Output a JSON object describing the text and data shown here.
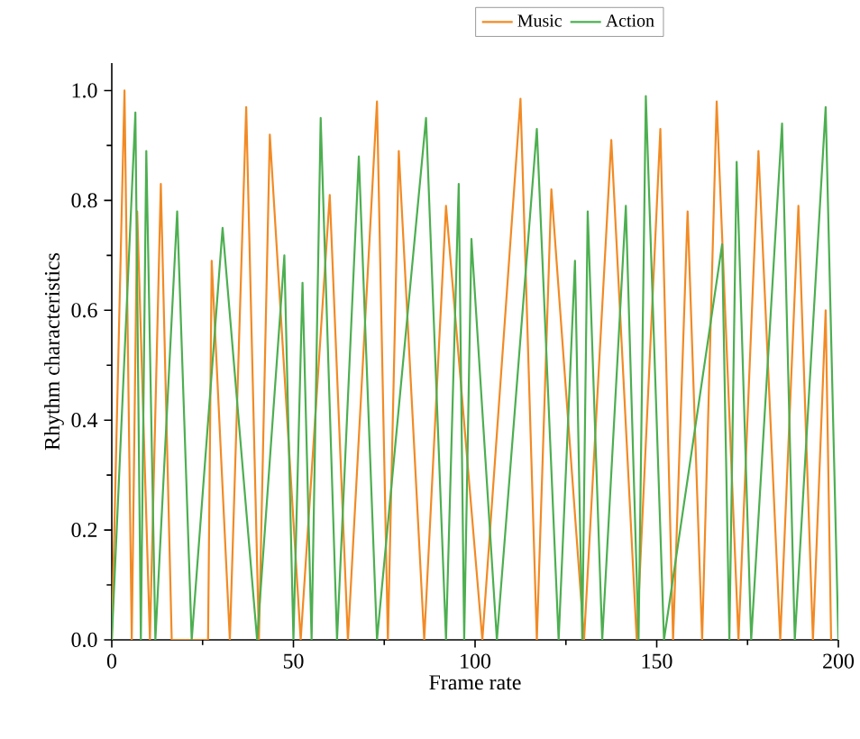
{
  "chart_data": {
    "type": "line",
    "xlabel": "Frame rate",
    "ylabel": "Rhythm characteristics",
    "series": [
      {
        "name": "Music",
        "color": "#f28a24",
        "x": [
          0,
          3.5,
          5.5,
          7,
          10.5,
          13.5,
          16.5,
          26.5,
          27.5,
          32.5,
          37,
          40.5,
          43.5,
          52,
          60,
          65,
          73,
          76,
          79,
          86,
          92,
          102,
          112.5,
          117,
          121,
          130,
          137.5,
          144.5,
          151,
          154.5,
          158.5,
          162.5,
          166.5,
          172.5,
          178,
          184,
          189,
          193,
          196.5,
          198
        ],
        "values": [
          0,
          1.0,
          0,
          0.78,
          0,
          0.83,
          0,
          0,
          0.69,
          0,
          0.97,
          0,
          0.92,
          0,
          0.81,
          0,
          0.98,
          0,
          0.89,
          0,
          0.79,
          0,
          0.985,
          0,
          0.82,
          0,
          0.91,
          0,
          0.93,
          0,
          0.78,
          0,
          0.98,
          0,
          0.89,
          0,
          0.79,
          0,
          0.6,
          0
        ]
      },
      {
        "name": "Action",
        "color": "#4caf50",
        "x": [
          0,
          6.5,
          8,
          9.5,
          12,
          18,
          22,
          30.5,
          40,
          47.5,
          50,
          52.5,
          55,
          57.5,
          62,
          68,
          73,
          86.5,
          92,
          95.5,
          97,
          99,
          106,
          117,
          123,
          127.5,
          129.5,
          131,
          135,
          141.5,
          145,
          147,
          152,
          168,
          170,
          172,
          176,
          184.5,
          188,
          196.5,
          200
        ],
        "values": [
          0,
          0.96,
          0,
          0.89,
          0,
          0.78,
          0,
          0.75,
          0,
          0.7,
          0,
          0.65,
          0,
          0.95,
          0,
          0.88,
          0,
          0.95,
          0,
          0.83,
          0,
          0.73,
          0,
          0.93,
          0,
          0.69,
          0,
          0.78,
          0,
          0.79,
          0,
          0.99,
          0,
          0.72,
          0,
          0.87,
          0,
          0.94,
          0,
          0.97,
          0
        ]
      }
    ],
    "xlim": [
      0,
      200
    ],
    "ylim": [
      0,
      1.05
    ],
    "xticks": [
      0,
      50,
      100,
      150,
      200
    ],
    "yticks": [
      {
        "value": 0,
        "label": "0.0"
      },
      {
        "value": 0.2,
        "label": "0.2"
      },
      {
        "value": 0.4,
        "label": "0.4"
      },
      {
        "value": 0.6,
        "label": "0.6"
      },
      {
        "value": 0.8,
        "label": "0.8"
      },
      {
        "value": 1.0,
        "label": "1.0"
      }
    ],
    "grid": false,
    "legend": "top",
    "marker": "none",
    "line_style": "solid"
  }
}
